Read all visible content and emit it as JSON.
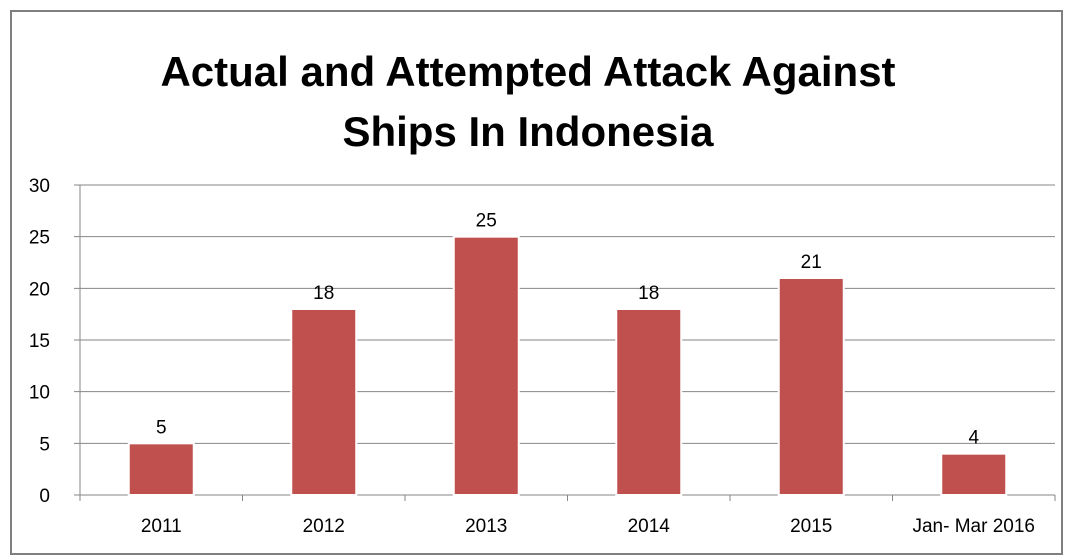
{
  "chart_data": {
    "type": "bar",
    "title": "Actual and Attempted Attack Against Ships In Indonesia",
    "title_lines": [
      "Actual and Attempted Attack Against",
      "Ships In Indonesia"
    ],
    "categories": [
      "2011",
      "2012",
      "2013",
      "2014",
      "2015",
      "Jan- Mar 2016"
    ],
    "values": [
      5,
      18,
      25,
      18,
      21,
      4
    ],
    "data_labels": [
      "5",
      "18",
      "25",
      "18",
      "21",
      "4"
    ],
    "y_ticks": [
      "0",
      "5",
      "10",
      "15",
      "20",
      "25",
      "30"
    ],
    "ylim": [
      0,
      30
    ],
    "y_step": 5,
    "grid": true,
    "legend": "none",
    "bar_color": "#c0504d",
    "xlabel": "",
    "ylabel": ""
  }
}
